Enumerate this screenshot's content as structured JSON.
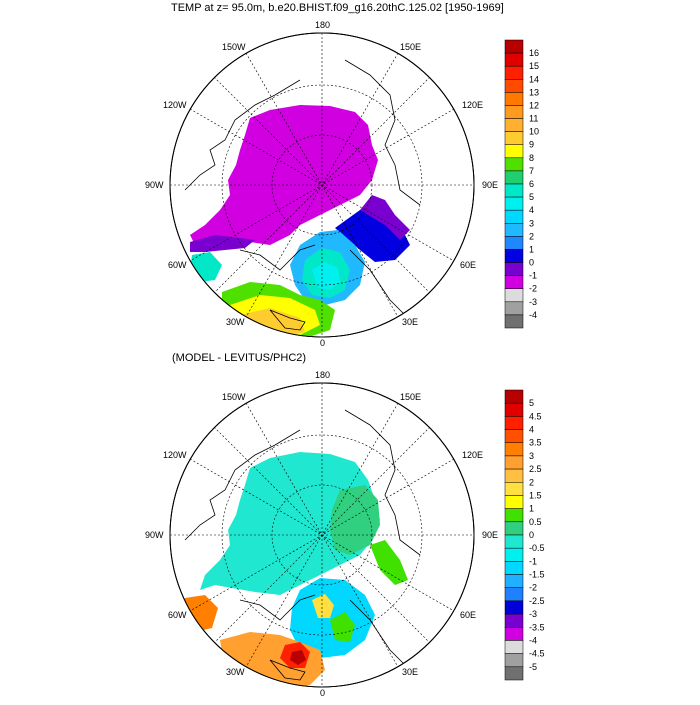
{
  "figure": {
    "top_title": "TEMP at z=  95.0m, b.e20.BHIST.f09_g16.20thC.125.02 [1950-1969]",
    "bottom_title": "(MODEL - LEVITUS/PHC2)"
  },
  "map": {
    "projection": "north-polar-stereographic",
    "longitude_labels": {
      "top": "180",
      "bottom": "0",
      "left": "90W",
      "right": "90E",
      "upper_left_1": "150W",
      "upper_left_2": "120W",
      "upper_right_1": "150E",
      "upper_right_2": "120E",
      "lower_left_1": "60W",
      "lower_left_2": "30W",
      "lower_right_1": "60E",
      "lower_right_2": "30E"
    }
  },
  "colorbars": {
    "top": {
      "labels": [
        "16",
        "15",
        "14",
        "13",
        "12",
        "11",
        "10",
        "9",
        "8",
        "7",
        "6",
        "5",
        "4",
        "3",
        "2",
        "1",
        "0",
        "-1",
        "-2",
        "-3",
        "-4"
      ],
      "colors": [
        "#b80000",
        "#e00000",
        "#ff2000",
        "#ff4a00",
        "#ff7800",
        "#ff9a20",
        "#ffb030",
        "#ffcc30",
        "#ffff00",
        "#50e000",
        "#20d070",
        "#00e8c8",
        "#00f0f0",
        "#00d8ff",
        "#20b8ff",
        "#2088ff",
        "#0000e0",
        "#7a00d0",
        "#d000e0",
        "#dcdcdc",
        "#a0a0a0",
        "#707070"
      ]
    },
    "bottom": {
      "labels": [
        "5",
        "4.5",
        "4",
        "3.5",
        "3",
        "2.5",
        "2",
        "1.5",
        "1",
        "0.5",
        "0",
        "-0.5",
        "-1",
        "-1.5",
        "-2",
        "-2.5",
        "-3",
        "-3.5",
        "-4",
        "-4.5",
        "-5"
      ],
      "colors": [
        "#b80000",
        "#e00000",
        "#ff2000",
        "#ff5000",
        "#ff8000",
        "#ffa030",
        "#ffbf40",
        "#ffe040",
        "#ffff00",
        "#40e000",
        "#30d080",
        "#20e8d0",
        "#00f0f0",
        "#00d8ff",
        "#20b0ff",
        "#2080ff",
        "#0000d8",
        "#7a00d0",
        "#d000e0",
        "#dcdcdc",
        "#a0a0a0",
        "#707070"
      ]
    }
  }
}
